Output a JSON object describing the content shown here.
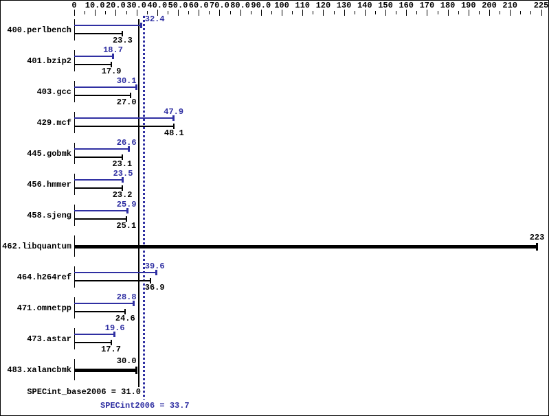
{
  "chart_data": {
    "type": "bar",
    "orientation": "horizontal",
    "title": "",
    "categories": [
      "400.perlbench",
      "401.bzip2",
      "403.gcc",
      "429.mcf",
      "445.gobmk",
      "456.hmmer",
      "458.sjeng",
      "462.libquantum",
      "464.h264ref",
      "471.omnetpp",
      "473.astar",
      "483.xalancbmk"
    ],
    "series": [
      {
        "name": "SPECint2006 (peak)",
        "color": "#2f2fa2",
        "values": [
          32.4,
          18.7,
          30.1,
          47.9,
          26.6,
          23.5,
          25.9,
          223,
          39.6,
          28.8,
          19.6,
          30.0
        ]
      },
      {
        "name": "SPECint_base2006 (base)",
        "color": "#000000",
        "values": [
          23.3,
          17.9,
          27.0,
          48.1,
          23.1,
          23.2,
          25.1,
          223,
          36.9,
          24.6,
          17.7,
          30.0
        ]
      }
    ],
    "single_bar_rows": [
      7,
      11
    ],
    "axis": {
      "position": "top",
      "min": 0,
      "max": 225,
      "minor_step": 5,
      "ticks": [
        {
          "v": 0,
          "t": "0"
        },
        {
          "v": 10,
          "t": "10.0"
        },
        {
          "v": 20,
          "t": "20.0"
        },
        {
          "v": 30,
          "t": "30.0"
        },
        {
          "v": 40,
          "t": "40.0"
        },
        {
          "v": 50,
          "t": "50.0"
        },
        {
          "v": 60,
          "t": "60.0"
        },
        {
          "v": 70,
          "t": "70.0"
        },
        {
          "v": 80,
          "t": "80.0"
        },
        {
          "v": 90,
          "t": "90.0"
        },
        {
          "v": 100,
          "t": "100"
        },
        {
          "v": 110,
          "t": "110"
        },
        {
          "v": 120,
          "t": "120"
        },
        {
          "v": 130,
          "t": "130"
        },
        {
          "v": 140,
          "t": "140"
        },
        {
          "v": 150,
          "t": "150"
        },
        {
          "v": 160,
          "t": "160"
        },
        {
          "v": 170,
          "t": "170"
        },
        {
          "v": 180,
          "t": "180"
        },
        {
          "v": 190,
          "t": "190"
        },
        {
          "v": 200,
          "t": "200"
        },
        {
          "v": 210,
          "t": "210"
        },
        {
          "v": 225,
          "t": "225"
        }
      ]
    },
    "reference_lines": [
      {
        "name": "SPECint_base2006",
        "value": 31.0,
        "style": "solid",
        "color": "#000000"
      },
      {
        "name": "SPECint2006",
        "value": 33.7,
        "style": "dotted",
        "color": "#2f2fa2"
      }
    ],
    "grid": false,
    "legend": false
  },
  "summary": {
    "base_text": "SPECint_base2006 = 31.0",
    "peak_text": "SPECint2006 = 33.7"
  },
  "colors": {
    "peak_blue": "#2f2fa2",
    "bar_black": "#000000",
    "background": "#ffffff"
  }
}
